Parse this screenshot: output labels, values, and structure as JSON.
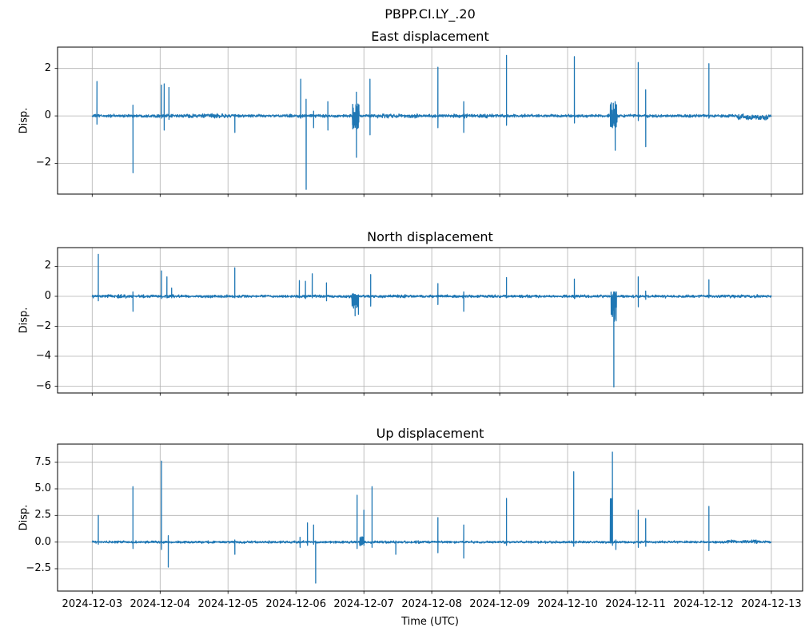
{
  "figure_title": "PBPP.CI.LY_.20",
  "xlabel": "Time (UTC)",
  "colors": {
    "line": "#1f77b4",
    "grid": "#b0b0b0",
    "axis": "#000000",
    "background": "#ffffff"
  },
  "x_axis": {
    "tick_labels": [
      "2024-12-03",
      "2024-12-04",
      "2024-12-05",
      "2024-12-06",
      "2024-12-07",
      "2024-12-08",
      "2024-12-09",
      "2024-12-10",
      "2024-12-11",
      "2024-12-12",
      "2024-12-13"
    ],
    "data_start": "2024-12-03",
    "data_end": "2024-12-13"
  },
  "chart_data": [
    {
      "type": "line",
      "title": "East displacement",
      "ylabel": "Disp.",
      "ytick_vals": [
        2,
        0,
        -2
      ],
      "ytick_labels": [
        "2",
        "0",
        "−2"
      ],
      "ylim": [
        -3.3,
        2.9
      ],
      "grid": true,
      "noise_amp": 0.035,
      "noise_segments": [
        {
          "t0": 1.4,
          "t1": 2.0,
          "amp": 0.05
        },
        {
          "t0": 4.2,
          "t1": 4.8,
          "amp": 0.05
        },
        {
          "t0": 5.3,
          "t1": 6.0,
          "amp": 0.045
        },
        {
          "t0": 9.5,
          "t1": 9.95,
          "amp": 0.06,
          "offset": -0.05
        }
      ],
      "spikes": [
        {
          "t": 0.07,
          "up": 1.45,
          "down": -0.35
        },
        {
          "t": 0.6,
          "up": 0.45,
          "down": -2.4
        },
        {
          "t": 1.02,
          "up": 1.3,
          "down": -0.1
        },
        {
          "t": 1.06,
          "up": 1.35,
          "down": -0.6
        },
        {
          "t": 1.13,
          "up": 1.2,
          "down": -0.15
        },
        {
          "t": 2.1,
          "up": 0.05,
          "down": -0.7
        },
        {
          "t": 3.07,
          "up": 1.55,
          "down": -0.1
        },
        {
          "t": 3.15,
          "up": 0.7,
          "down": -3.1
        },
        {
          "t": 3.26,
          "up": 0.2,
          "down": -0.5
        },
        {
          "t": 3.47,
          "up": 0.6,
          "down": -0.6
        },
        {
          "t": 3.89,
          "up": 1.0,
          "down": -1.75
        },
        {
          "t": 4.09,
          "up": 1.55,
          "down": -0.8
        },
        {
          "t": 5.09,
          "up": 2.05,
          "down": -0.5
        },
        {
          "t": 5.47,
          "up": 0.6,
          "down": -0.7
        },
        {
          "t": 6.1,
          "up": 2.55,
          "down": -0.4
        },
        {
          "t": 7.1,
          "up": 2.5,
          "down": -0.3
        },
        {
          "t": 7.7,
          "up": 0.6,
          "down": -1.45
        },
        {
          "t": 8.04,
          "up": 2.25,
          "down": -0.2
        },
        {
          "t": 8.15,
          "up": 1.1,
          "down": -1.3
        },
        {
          "t": 9.08,
          "up": 2.2,
          "down": -0.1
        }
      ],
      "clusters": [
        {
          "t0": 3.83,
          "t1": 3.93,
          "hi": 0.5,
          "lo": -0.55
        },
        {
          "t0": 7.63,
          "t1": 7.73,
          "hi": 0.55,
          "lo": -0.5
        }
      ]
    },
    {
      "type": "line",
      "title": "North displacement",
      "ylabel": "Disp.",
      "ytick_vals": [
        2,
        0,
        -2,
        -4,
        -6
      ],
      "ytick_labels": [
        "2",
        "0",
        "−2",
        "−4",
        "−6"
      ],
      "ylim": [
        -6.45,
        3.25
      ],
      "grid": true,
      "noise_amp": 0.05,
      "noise_segments": [
        {
          "t0": 0.15,
          "t1": 0.95,
          "amp": 0.06
        },
        {
          "t0": 4.3,
          "t1": 5.0,
          "amp": 0.055
        },
        {
          "t0": 9.3,
          "t1": 9.9,
          "amp": 0.06
        }
      ],
      "spikes": [
        {
          "t": 0.09,
          "up": 2.8,
          "down": -0.3
        },
        {
          "t": 0.6,
          "up": 0.3,
          "down": -1.0
        },
        {
          "t": 1.02,
          "up": 1.7,
          "down": -0.15
        },
        {
          "t": 1.1,
          "up": 1.3,
          "down": -0.1
        },
        {
          "t": 1.17,
          "up": 0.55,
          "down": -0.1
        },
        {
          "t": 2.1,
          "up": 1.9,
          "down": -0.1
        },
        {
          "t": 3.05,
          "up": 1.05,
          "down": -0.1
        },
        {
          "t": 3.14,
          "up": 1.0,
          "down": -0.15
        },
        {
          "t": 3.24,
          "up": 1.5,
          "down": -0.1
        },
        {
          "t": 3.45,
          "up": 0.9,
          "down": -0.3
        },
        {
          "t": 3.87,
          "up": 0.1,
          "down": -1.3
        },
        {
          "t": 3.92,
          "up": 0.1,
          "down": -1.2
        },
        {
          "t": 4.1,
          "up": 1.45,
          "down": -0.65
        },
        {
          "t": 5.09,
          "up": 0.85,
          "down": -0.55
        },
        {
          "t": 5.47,
          "up": 0.3,
          "down": -1.0
        },
        {
          "t": 6.1,
          "up": 1.25,
          "down": -0.1
        },
        {
          "t": 7.1,
          "up": 1.15,
          "down": -0.15
        },
        {
          "t": 7.68,
          "up": 0.3,
          "down": -6.05
        },
        {
          "t": 8.04,
          "up": 1.3,
          "down": -0.7
        },
        {
          "t": 8.15,
          "up": 0.35,
          "down": -0.2
        },
        {
          "t": 9.08,
          "up": 1.1,
          "down": -0.1
        }
      ],
      "clusters": [
        {
          "t0": 3.82,
          "t1": 3.92,
          "hi": 0.2,
          "lo": -0.85
        },
        {
          "t0": 7.64,
          "t1": 7.72,
          "hi": 0.35,
          "lo": -1.7
        }
      ]
    },
    {
      "type": "line",
      "title": "Up displacement",
      "ylabel": "Disp.",
      "ytick_vals": [
        7.5,
        5.0,
        2.5,
        0.0,
        -2.5
      ],
      "ytick_labels": [
        "7.5",
        "5.0",
        "2.5",
        "0.0",
        "−2.5"
      ],
      "ylim": [
        -4.6,
        9.2
      ],
      "grid": true,
      "noise_amp": 0.06,
      "noise_segments": [
        {
          "t0": 4.3,
          "t1": 5.0,
          "amp": 0.07
        },
        {
          "t0": 9.35,
          "t1": 9.85,
          "amp": 0.09,
          "offset": 0.05
        }
      ],
      "spikes": [
        {
          "t": 0.09,
          "up": 2.5,
          "down": -0.2
        },
        {
          "t": 0.6,
          "up": 5.2,
          "down": -0.6
        },
        {
          "t": 1.02,
          "up": 7.6,
          "down": -0.7
        },
        {
          "t": 1.12,
          "up": 0.6,
          "down": -2.35
        },
        {
          "t": 2.1,
          "up": 0.2,
          "down": -1.15
        },
        {
          "t": 3.06,
          "up": 0.45,
          "down": -0.5
        },
        {
          "t": 3.17,
          "up": 1.8,
          "down": -0.3
        },
        {
          "t": 3.26,
          "up": 1.6,
          "down": -0.2
        },
        {
          "t": 3.29,
          "up": 0.1,
          "down": -3.85
        },
        {
          "t": 3.9,
          "up": 4.4,
          "down": -0.6
        },
        {
          "t": 4.0,
          "up": 3.0,
          "down": -0.3
        },
        {
          "t": 4.12,
          "up": 5.2,
          "down": -0.5
        },
        {
          "t": 4.47,
          "up": 0.1,
          "down": -1.15
        },
        {
          "t": 5.09,
          "up": 2.3,
          "down": -1.0
        },
        {
          "t": 5.47,
          "up": 1.6,
          "down": -1.5
        },
        {
          "t": 6.1,
          "up": 4.1,
          "down": -0.3
        },
        {
          "t": 7.09,
          "up": 6.6,
          "down": -0.4
        },
        {
          "t": 7.66,
          "up": 8.45,
          "down": -0.3
        },
        {
          "t": 7.71,
          "up": 0.2,
          "down": -0.7
        },
        {
          "t": 8.04,
          "up": 3.0,
          "down": -0.5
        },
        {
          "t": 8.15,
          "up": 2.2,
          "down": -0.4
        },
        {
          "t": 9.08,
          "up": 3.35,
          "down": -0.8
        }
      ],
      "clusters": [
        {
          "t0": 3.94,
          "t1": 4.0,
          "hi": 0.5,
          "lo": -0.35
        },
        {
          "t0": 7.63,
          "t1": 7.66,
          "hi": 4.7,
          "lo": -0.2
        }
      ]
    }
  ]
}
